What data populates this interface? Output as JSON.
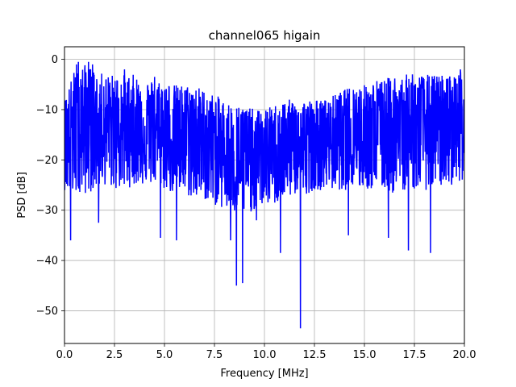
{
  "chart_data": {
    "type": "line",
    "title": "channel065 higain",
    "xlabel": "Frequency [MHz]",
    "ylabel": "PSD [dB]",
    "xlim": [
      0,
      20
    ],
    "ylim": [
      -56.5,
      2.5
    ],
    "grid": true,
    "xticks": [
      0,
      2.5,
      5,
      7.5,
      10,
      12.5,
      15,
      17.5,
      20
    ],
    "xtick_labels": [
      "0.0",
      "2.5",
      "5.0",
      "7.5",
      "10.0",
      "12.5",
      "15.0",
      "17.5",
      "20.0"
    ],
    "yticks": [
      0,
      -10,
      -20,
      -30,
      -40,
      -50
    ],
    "ytick_labels": [
      "0",
      "−10",
      "−20",
      "−30",
      "−40",
      "−50"
    ],
    "series": [
      {
        "color": "#0000ff",
        "envelope": {
          "x": [
            0.0,
            0.5,
            1.0,
            1.5,
            2.0,
            2.5,
            3.0,
            3.5,
            4.0,
            4.5,
            5.0,
            5.5,
            6.0,
            6.5,
            7.0,
            7.5,
            8.0,
            8.5,
            9.0,
            9.5,
            10.0,
            10.5,
            11.0,
            11.5,
            12.0,
            12.5,
            13.0,
            13.5,
            14.0,
            14.5,
            15.0,
            15.5,
            16.0,
            16.5,
            17.0,
            17.5,
            18.0,
            18.5,
            19.0,
            19.5,
            20.0
          ],
          "upper": [
            -8,
            -2,
            -1,
            -2,
            -3,
            -3,
            -3,
            -3,
            -4,
            -4,
            -4,
            -5,
            -5,
            -5,
            -6,
            -7,
            -8,
            -9,
            -9,
            -10,
            -10,
            -9,
            -8,
            -8,
            -8,
            -8,
            -8,
            -7,
            -6,
            -5,
            -5,
            -4,
            -4,
            -3,
            -3,
            -3,
            -3,
            -3,
            -3,
            -3,
            -2
          ],
          "lower": [
            -26,
            -28,
            -27,
            -26,
            -25,
            -26,
            -26,
            -25,
            -25,
            -25,
            -26,
            -27,
            -27,
            -28,
            -28,
            -29,
            -30,
            -31,
            -31,
            -30,
            -29,
            -29,
            -28,
            -27,
            -27,
            -26,
            -26,
            -26,
            -26,
            -26,
            -26,
            -26,
            -26,
            -27,
            -26,
            -26,
            -26,
            -26,
            -25,
            -25,
            -24
          ],
          "center": [
            -15,
            -13,
            -12,
            -13,
            -13,
            -13,
            -14,
            -14,
            -14,
            -14,
            -15,
            -15,
            -16,
            -16,
            -17,
            -18,
            -19,
            -20,
            -20,
            -20,
            -19,
            -19,
            -18,
            -17,
            -17,
            -16,
            -16,
            -16,
            -15,
            -15,
            -15,
            -15,
            -14,
            -14,
            -14,
            -14,
            -14,
            -14,
            -14,
            -13,
            -13
          ]
        },
        "dips": [
          {
            "x": 0.3,
            "y": -36
          },
          {
            "x": 1.7,
            "y": -32.5
          },
          {
            "x": 4.8,
            "y": -35.5
          },
          {
            "x": 5.6,
            "y": -36
          },
          {
            "x": 8.3,
            "y": -36
          },
          {
            "x": 8.6,
            "y": -45
          },
          {
            "x": 8.9,
            "y": -44.5
          },
          {
            "x": 9.6,
            "y": -32
          },
          {
            "x": 10.8,
            "y": -38.5
          },
          {
            "x": 11.8,
            "y": -53.5
          },
          {
            "x": 14.2,
            "y": -35
          },
          {
            "x": 16.2,
            "y": -35.5
          },
          {
            "x": 17.2,
            "y": -38
          },
          {
            "x": 17.4,
            "y": -38.5
          },
          {
            "x": 18.3,
            "y": -38.5
          }
        ],
        "peaks": [
          {
            "x": 0.7,
            "y": -0.5
          },
          {
            "x": 0.6,
            "y": -1
          },
          {
            "x": 1.2,
            "y": -0.5
          },
          {
            "x": 1.4,
            "y": -1
          },
          {
            "x": 3.0,
            "y": -2
          },
          {
            "x": 4.5,
            "y": -3.5
          },
          {
            "x": 17.4,
            "y": -3
          },
          {
            "x": 19.8,
            "y": -2
          }
        ]
      }
    ]
  }
}
